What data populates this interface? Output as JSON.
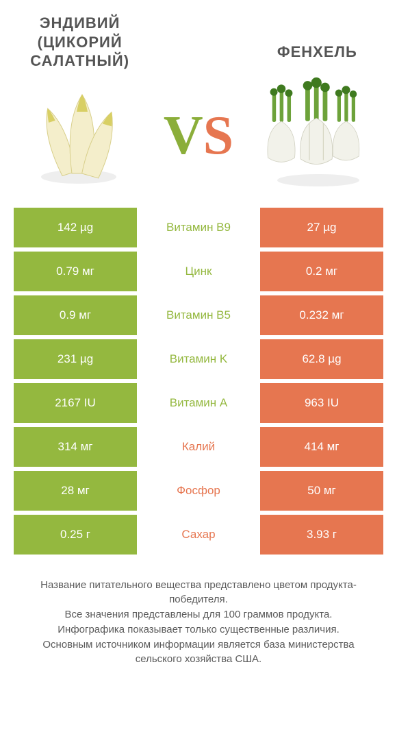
{
  "colors": {
    "left": "#94b83f",
    "right": "#e67650",
    "text": "#4a4a4a"
  },
  "products": {
    "left": {
      "title": "ЭНДИВИЙ (ЦИКОРИЙ САЛАТНЫЙ)"
    },
    "right": {
      "title": "ФЕНХЕЛЬ"
    }
  },
  "vs": {
    "v": "V",
    "s": "S"
  },
  "rows": [
    {
      "label": "Витамин B9",
      "left": "142 µg",
      "right": "27 µg",
      "winner": "left"
    },
    {
      "label": "Цинк",
      "left": "0.79 мг",
      "right": "0.2 мг",
      "winner": "left"
    },
    {
      "label": "Витамин B5",
      "left": "0.9 мг",
      "right": "0.232 мг",
      "winner": "left"
    },
    {
      "label": "Витамин K",
      "left": "231 µg",
      "right": "62.8 µg",
      "winner": "left"
    },
    {
      "label": "Витамин A",
      "left": "2167 IU",
      "right": "963 IU",
      "winner": "left"
    },
    {
      "label": "Калий",
      "left": "314 мг",
      "right": "414 мг",
      "winner": "right"
    },
    {
      "label": "Фосфор",
      "left": "28 мг",
      "right": "50 мг",
      "winner": "right"
    },
    {
      "label": "Сахар",
      "left": "0.25 г",
      "right": "3.93 г",
      "winner": "right"
    }
  ],
  "footer": "Название питательного вещества представлено цветом продукта-победителя.\nВсе значения представлены для 100 граммов продукта.\nИнфографика показывает только существенные различия.\nОсновным источником информации является база министерства сельского хозяйства США."
}
